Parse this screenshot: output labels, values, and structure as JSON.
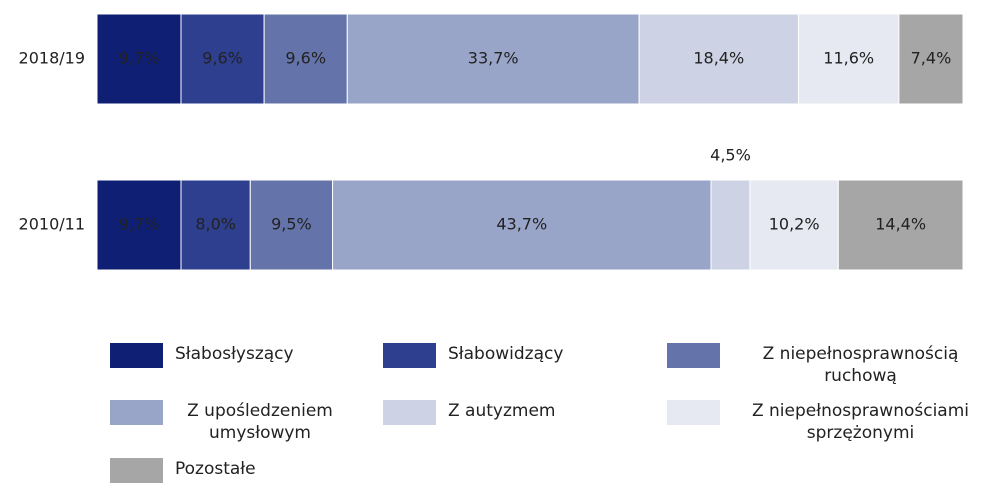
{
  "chart_data": {
    "type": "stacked_bar_horizontal",
    "categories": [
      "2018/19",
      "2010/11"
    ],
    "series": [
      {
        "name": "Słabosłyszący",
        "color": "#0f1f73",
        "values": [
          9.7,
          9.7
        ],
        "value_labels": [
          "9,7%",
          "9,7%"
        ]
      },
      {
        "name": "Słabowidzący",
        "color": "#2e3f8f",
        "values": [
          9.6,
          8.0
        ],
        "value_labels": [
          "9,6%",
          "8,0%"
        ]
      },
      {
        "name": "Z niepełnosprawnością ruchową",
        "color": "#6474aa",
        "values": [
          9.6,
          9.5
        ],
        "value_labels": [
          "9,6%",
          "9,5%"
        ]
      },
      {
        "name": "Z upośledzeniem umysłowym",
        "color": "#99a5c8",
        "values": [
          33.7,
          43.7
        ],
        "value_labels": [
          "33,7%",
          "43,7%"
        ]
      },
      {
        "name": "Z autyzmem",
        "color": "#cdd2e4",
        "values": [
          18.4,
          4.5
        ],
        "value_labels": [
          "18,4%",
          "4,5%"
        ]
      },
      {
        "name": "Z niepełnosprawnościami sprzężonymi",
        "color": "#e6e8f2",
        "values": [
          11.6,
          10.2
        ],
        "value_labels": [
          "11,6%",
          "10,2%"
        ]
      },
      {
        "name": "Pozostałe",
        "color": "#a6a6a6",
        "values": [
          7.4,
          14.4
        ],
        "value_labels": [
          "7,4%",
          "14,4%"
        ]
      }
    ],
    "xlim": [
      0,
      100
    ],
    "legend": "bottom"
  }
}
